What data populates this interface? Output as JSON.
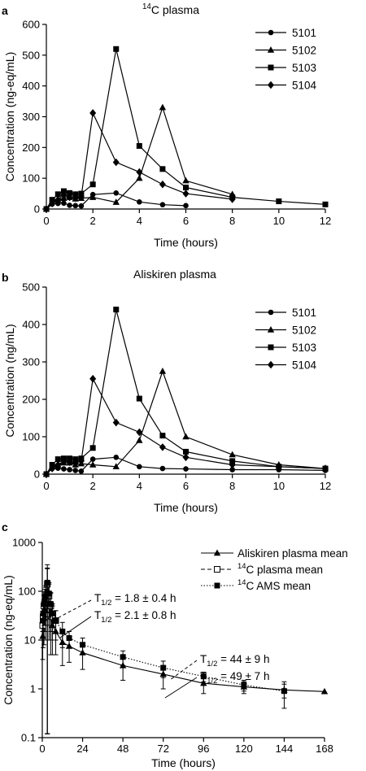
{
  "chart_data": [
    {
      "type": "line",
      "panel_label": "a",
      "title": "14C plasma",
      "xlabel": "Time (hours)",
      "ylabel": "Concentration (ng-eq/mL)",
      "xlim": [
        0,
        12
      ],
      "ylim": [
        0,
        600
      ],
      "xticks": [
        0,
        2,
        4,
        6,
        8,
        10,
        12
      ],
      "yticks": [
        0,
        100,
        200,
        300,
        400,
        500,
        600
      ],
      "grid": false,
      "legend_position": "top-right",
      "series": [
        {
          "name": "5101",
          "marker": "circle",
          "x": [
            0,
            0.25,
            0.5,
            0.75,
            1,
            1.25,
            1.5,
            2,
            3,
            4,
            5,
            6
          ],
          "y": [
            0,
            16,
            18,
            19,
            12,
            11,
            10,
            47,
            52,
            23,
            14,
            11
          ]
        },
        {
          "name": "5102",
          "marker": "triangle",
          "x": [
            0,
            0.25,
            0.5,
            0.75,
            1,
            1.25,
            1.5,
            2,
            3,
            4,
            5,
            6,
            8
          ],
          "y": [
            0,
            25,
            30,
            35,
            38,
            33,
            35,
            38,
            22,
            100,
            330,
            92,
            48
          ]
        },
        {
          "name": "5103",
          "marker": "square",
          "x": [
            0,
            0.25,
            0.5,
            0.75,
            1,
            1.25,
            1.5,
            2,
            3,
            4,
            5,
            6,
            8,
            10,
            12
          ],
          "y": [
            0,
            30,
            48,
            58,
            52,
            48,
            50,
            80,
            520,
            205,
            130,
            70,
            38,
            25,
            15
          ]
        },
        {
          "name": "5104",
          "marker": "diamond",
          "x": [
            0,
            0.25,
            0.5,
            0.75,
            1,
            1.25,
            1.5,
            2,
            3,
            4,
            5,
            6,
            8
          ],
          "y": [
            0,
            18,
            30,
            45,
            38,
            35,
            40,
            312,
            152,
            120,
            80,
            50,
            32
          ]
        }
      ]
    },
    {
      "type": "line",
      "panel_label": "b",
      "title": "Aliskiren plasma",
      "xlabel": "Time (hours)",
      "ylabel": "Concentration (ng/mL)",
      "xlim": [
        0,
        12
      ],
      "ylim": [
        0,
        500
      ],
      "xticks": [
        0,
        2,
        4,
        6,
        8,
        10,
        12
      ],
      "yticks": [
        0,
        100,
        200,
        300,
        400,
        500
      ],
      "grid": false,
      "legend_position": "top-right",
      "series": [
        {
          "name": "5101",
          "marker": "circle",
          "x": [
            0,
            0.25,
            0.5,
            0.75,
            1,
            1.25,
            1.5,
            2,
            3,
            4,
            5,
            6,
            8,
            10,
            12
          ],
          "y": [
            0,
            15,
            16,
            14,
            12,
            10,
            8,
            40,
            45,
            20,
            15,
            14,
            12,
            12,
            10
          ]
        },
        {
          "name": "5102",
          "marker": "triangle",
          "x": [
            0,
            0.25,
            0.5,
            0.75,
            1,
            1.25,
            1.5,
            2,
            3,
            4,
            5,
            6,
            8,
            10,
            12
          ],
          "y": [
            0,
            20,
            25,
            30,
            30,
            25,
            28,
            25,
            20,
            90,
            275,
            100,
            52,
            25,
            15
          ]
        },
        {
          "name": "5103",
          "marker": "square",
          "x": [
            0,
            0.25,
            0.5,
            0.75,
            1,
            1.25,
            1.5,
            2,
            3,
            4,
            5,
            6,
            8,
            10,
            12
          ],
          "y": [
            0,
            25,
            40,
            42,
            42,
            40,
            42,
            70,
            440,
            202,
            103,
            60,
            35,
            20,
            15
          ]
        },
        {
          "name": "5104",
          "marker": "diamond",
          "x": [
            0,
            0.25,
            0.5,
            0.75,
            1,
            1.25,
            1.5,
            2,
            3,
            4,
            5,
            6,
            8,
            10,
            12
          ],
          "y": [
            0,
            15,
            25,
            35,
            32,
            30,
            35,
            255,
            138,
            112,
            72,
            45,
            25,
            20,
            15
          ]
        }
      ]
    },
    {
      "type": "line",
      "panel_label": "c",
      "xlabel": "Time (hours)",
      "ylabel": "Concentration (ng-eq/mL)",
      "xlim": [
        0,
        168
      ],
      "ylim": [
        0.1,
        1000
      ],
      "yscale": "log",
      "xticks": [
        0,
        24,
        48,
        72,
        96,
        120,
        144,
        168
      ],
      "yticks": [
        0.1,
        1,
        10,
        100,
        1000
      ],
      "grid": false,
      "legend_position": "top-right",
      "series": [
        {
          "name": "Aliskiren plasma mean",
          "marker": "triangle",
          "line": "solid",
          "x": [
            0.25,
            0.5,
            1,
            1.5,
            2,
            3,
            4,
            5,
            6,
            8,
            12,
            16,
            24,
            48,
            72,
            96,
            120,
            144,
            168
          ],
          "y": [
            12,
            22,
            28,
            55,
            40,
            100,
            50,
            30,
            20,
            15,
            9,
            7.5,
            5.5,
            3,
            2,
            1.3,
            1.1,
            0.95,
            0.88
          ],
          "err": [
            8,
            15,
            20,
            40,
            30,
            200,
            40,
            25,
            15,
            10,
            6,
            4,
            3,
            1.5,
            1,
            0.5,
            0.3,
            0.3,
            0
          ]
        },
        {
          "name": "14C plasma mean",
          "marker": "open-square",
          "line": "dashed",
          "x": [
            0.25,
            0.5,
            1,
            1.5,
            2,
            3,
            4,
            5,
            6,
            8
          ],
          "y": [
            20,
            30,
            50,
            60,
            70,
            140,
            80,
            50,
            30,
            25
          ],
          "err": [
            10,
            20,
            30,
            40,
            50,
            150,
            60,
            40,
            20,
            15
          ]
        },
        {
          "name": "14C AMS mean",
          "marker": "square",
          "line": "dotted",
          "x": [
            0.25,
            0.5,
            1,
            1.5,
            2,
            3,
            4,
            5,
            6,
            8,
            12,
            16,
            24,
            48,
            72,
            96,
            120,
            144
          ],
          "y": [
            25,
            35,
            55,
            70,
            80,
            150,
            90,
            55,
            35,
            25,
            15,
            11,
            8,
            4.5,
            2.7,
            1.8,
            1.2,
            0.9
          ],
          "err": [
            10,
            20,
            30,
            40,
            50,
            200,
            60,
            40,
            20,
            15,
            8,
            4,
            3,
            1.5,
            1,
            0.4,
            0.3,
            0.5
          ]
        }
      ],
      "annotations": [
        "T1/2 = 1.8 ± 0.4 h",
        "T1/2 = 2.1 ± 0.8 h",
        "T1/2 = 44 ± 9 h",
        "T1/2 = 49 ± 7 h"
      ]
    }
  ]
}
